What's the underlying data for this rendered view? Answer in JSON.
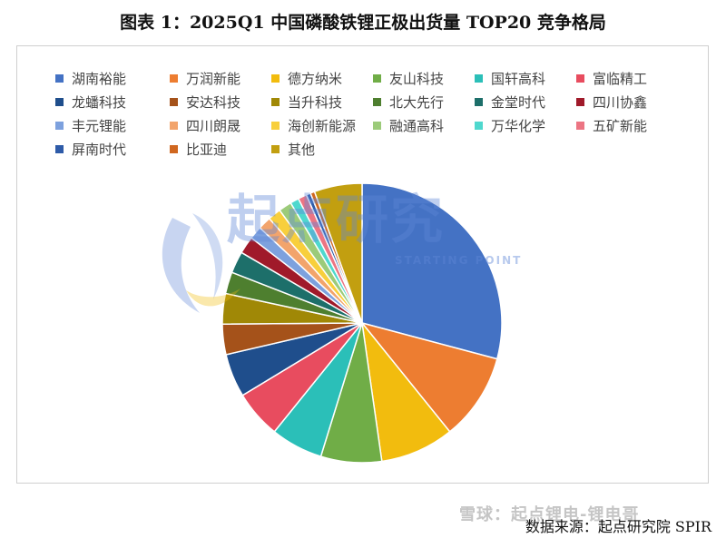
{
  "title": "图表 1：2025Q1 中国磷酸铁锂正极出货量 TOP20 竞争格局",
  "source": "数据来源：起点研究院 SPIR",
  "watermark": {
    "text": "起点研究",
    "subtext": "STARTING POINT",
    "xueqiu": "雪球：起点锂电-锂电哥"
  },
  "chart_data": {
    "type": "pie",
    "title": "图表 1：2025Q1 中国磷酸铁锂正极出货量 TOP20 竞争格局",
    "legend_position": "top",
    "start_angle_deg": 0,
    "direction": "clockwise",
    "series": [
      {
        "name": "湖南裕能",
        "value": 29.0,
        "color": "#4472C4"
      },
      {
        "name": "万润新能",
        "value": 10.0,
        "color": "#ED7D31"
      },
      {
        "name": "德方纳米",
        "value": 8.5,
        "color": "#F2BC0E"
      },
      {
        "name": "友山科技",
        "value": 7.0,
        "color": "#70AD47"
      },
      {
        "name": "国轩高科",
        "value": 6.0,
        "color": "#2BBFB8"
      },
      {
        "name": "富临精工",
        "value": 5.5,
        "color": "#E84C5F"
      },
      {
        "name": "龙蟠科技",
        "value": 5.0,
        "color": "#1F4E8C"
      },
      {
        "name": "安达科技",
        "value": 3.5,
        "color": "#A5521A"
      },
      {
        "name": "当升科技",
        "value": 3.5,
        "color": "#A08806"
      },
      {
        "name": "北大先行",
        "value": 2.5,
        "color": "#4E7F2F"
      },
      {
        "name": "金堂时代",
        "value": 2.5,
        "color": "#1D6F6A"
      },
      {
        "name": "四川协鑫",
        "value": 2.0,
        "color": "#A01A2A"
      },
      {
        "name": "丰元锂能",
        "value": 1.5,
        "color": "#7DA1DE"
      },
      {
        "name": "四川朗晟",
        "value": 1.5,
        "color": "#F2A46C"
      },
      {
        "name": "海创新能源",
        "value": 1.5,
        "color": "#F8CF3C"
      },
      {
        "name": "融通高科",
        "value": 1.5,
        "color": "#9CCB7A"
      },
      {
        "name": "万华化学",
        "value": 1.0,
        "color": "#4FD8CE"
      },
      {
        "name": "五矿新能",
        "value": 1.0,
        "color": "#EC7583"
      },
      {
        "name": "屏南时代",
        "value": 0.5,
        "color": "#2E5BA8"
      },
      {
        "name": "比亚迪",
        "value": 0.5,
        "color": "#D0671F"
      },
      {
        "name": "其他",
        "value": 5.5,
        "color": "#C29F10"
      }
    ]
  }
}
